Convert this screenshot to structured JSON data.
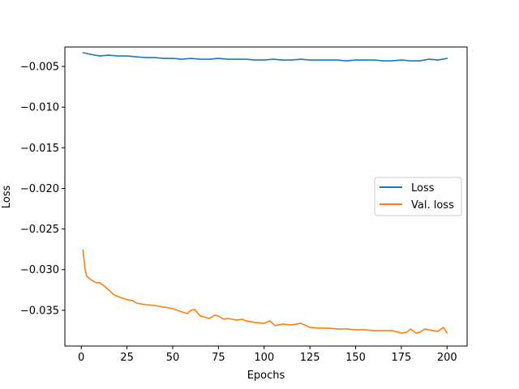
{
  "chart_data": {
    "type": "line",
    "title": "",
    "xlabel": "Epochs",
    "ylabel": "Loss",
    "xlim": [
      -8.95,
      210.95
    ],
    "ylim": [
      -0.0394,
      -0.0026
    ],
    "xticks": [
      0,
      25,
      50,
      75,
      100,
      125,
      150,
      175,
      200
    ],
    "xtick_labels": [
      "0",
      "25",
      "50",
      "75",
      "100",
      "125",
      "150",
      "175",
      "200"
    ],
    "yticks": [
      -0.035,
      -0.03,
      -0.025,
      -0.02,
      -0.015,
      -0.01,
      -0.005
    ],
    "ytick_labels": [
      "−0.035",
      "−0.030",
      "−0.025",
      "−0.020",
      "−0.015",
      "−0.010",
      "−0.005"
    ],
    "grid": false,
    "legend_position": "center-right",
    "series": [
      {
        "name": "Loss",
        "color": "#1f77b4",
        "x": [
          1,
          5,
          10,
          15,
          20,
          25,
          30,
          35,
          40,
          45,
          50,
          55,
          60,
          65,
          70,
          75,
          80,
          85,
          90,
          95,
          100,
          105,
          110,
          115,
          120,
          125,
          130,
          135,
          140,
          145,
          150,
          155,
          160,
          165,
          170,
          175,
          180,
          185,
          190,
          195,
          200
        ],
        "y": [
          -0.0033,
          -0.0035,
          -0.0037,
          -0.0036,
          -0.0037,
          -0.0037,
          -0.0038,
          -0.0039,
          -0.0039,
          -0.004,
          -0.004,
          -0.0041,
          -0.004,
          -0.0041,
          -0.0041,
          -0.004,
          -0.0041,
          -0.0041,
          -0.0041,
          -0.0042,
          -0.0042,
          -0.0041,
          -0.0042,
          -0.0042,
          -0.0041,
          -0.0042,
          -0.0042,
          -0.0042,
          -0.0042,
          -0.0043,
          -0.0042,
          -0.0042,
          -0.0042,
          -0.0043,
          -0.0043,
          -0.0042,
          -0.0043,
          -0.0043,
          -0.0041,
          -0.0042,
          -0.004
        ]
      },
      {
        "name": "Val. loss",
        "color": "#ff7f0e",
        "x": [
          1,
          2,
          3,
          5,
          8,
          10,
          13,
          15,
          18,
          20,
          25,
          28,
          30,
          35,
          40,
          45,
          50,
          55,
          58,
          60,
          62,
          65,
          70,
          73,
          75,
          78,
          80,
          85,
          88,
          90,
          95,
          100,
          103,
          106,
          110,
          115,
          120,
          125,
          130,
          135,
          140,
          145,
          150,
          155,
          160,
          165,
          170,
          175,
          178,
          180,
          183,
          185,
          188,
          190,
          195,
          198,
          200
        ],
        "y": [
          -0.0276,
          -0.0298,
          -0.0308,
          -0.0312,
          -0.0316,
          -0.0316,
          -0.0321,
          -0.0325,
          -0.0331,
          -0.0333,
          -0.0337,
          -0.0338,
          -0.0341,
          -0.0343,
          -0.0344,
          -0.0346,
          -0.0348,
          -0.0352,
          -0.0354,
          -0.035,
          -0.0349,
          -0.0357,
          -0.036,
          -0.0356,
          -0.0357,
          -0.0361,
          -0.036,
          -0.0362,
          -0.0361,
          -0.0363,
          -0.0365,
          -0.0366,
          -0.0363,
          -0.0369,
          -0.0367,
          -0.0368,
          -0.0366,
          -0.0371,
          -0.0372,
          -0.0372,
          -0.0373,
          -0.0373,
          -0.0374,
          -0.0374,
          -0.0375,
          -0.0375,
          -0.0375,
          -0.0378,
          -0.0377,
          -0.0373,
          -0.0378,
          -0.0377,
          -0.0373,
          -0.0374,
          -0.0376,
          -0.0371,
          -0.0378
        ]
      }
    ]
  }
}
